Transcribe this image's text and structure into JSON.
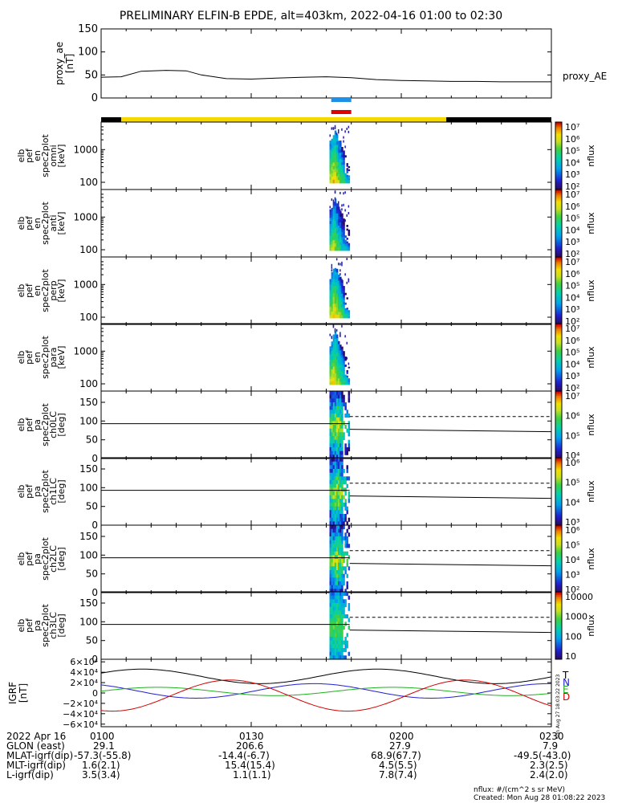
{
  "title": "PRELIMINARY ELFIN-B EPDE, alt=403km, 2022-04-16 01:00 to 02:30",
  "colors": {
    "sci_zone_blue": "#1e90e6",
    "sci_zone_red": "#e00000",
    "bar_black": "#000000",
    "bar_yellow": "#f5d800",
    "bx": "#000000",
    "by": "#2020d0",
    "bz": "#20b020",
    "bt": "#d00000"
  },
  "chart_data": [
    {
      "type": "line",
      "id": "proxy_ae",
      "ylabel_lines": [
        "proxy_ae",
        "[nT]"
      ],
      "ylim": [
        0,
        150
      ],
      "yticks": [
        "150",
        "100",
        "50",
        "0"
      ],
      "yticks_values": [
        150,
        100,
        50,
        0
      ],
      "series": [
        {
          "name": "proxy_AE",
          "x": [
            "01:00",
            "01:04",
            "01:08",
            "01:13",
            "01:17",
            "01:20",
            "01:25",
            "01:30",
            "01:35",
            "01:40",
            "01:45",
            "01:50",
            "01:55",
            "02:00",
            "02:05",
            "02:10",
            "02:15",
            "02:20",
            "02:25",
            "02:30"
          ],
          "values": [
            45,
            46,
            58,
            60,
            59,
            50,
            42,
            41,
            43,
            45,
            46,
            44,
            40,
            38,
            37,
            36,
            36,
            35,
            35,
            35
          ]
        }
      ]
    },
    {
      "type": "heatmap",
      "id": "omni",
      "ylabel_lines": [
        "elb",
        "pef",
        "en",
        "spec2plot",
        "omni",
        "[keV]"
      ],
      "ylog": true,
      "ylim": [
        60,
        7000
      ],
      "yticks": [
        "1000",
        "100"
      ],
      "yticks_values": [
        1000,
        100
      ],
      "colorbar": {
        "label": "nflux",
        "ticks": [
          "10⁷",
          "10⁶",
          "10⁵",
          "10⁴",
          "10³",
          "10²"
        ]
      }
    },
    {
      "type": "heatmap",
      "id": "anti",
      "ylabel_lines": [
        "elb",
        "pef",
        "en",
        "spec2plot",
        "anti",
        "[keV]"
      ],
      "ylog": true,
      "ylim": [
        60,
        7000
      ],
      "yticks": [
        "1000",
        "100"
      ],
      "yticks_values": [
        1000,
        100
      ],
      "colorbar": {
        "label": "nflux",
        "ticks": [
          "10⁷",
          "10⁶",
          "10⁵",
          "10⁴",
          "10³",
          "10²"
        ]
      }
    },
    {
      "type": "heatmap",
      "id": "perp",
      "ylabel_lines": [
        "elb",
        "pef",
        "en",
        "spec2plot",
        "perp",
        "[keV]"
      ],
      "ylog": true,
      "ylim": [
        60,
        7000
      ],
      "yticks": [
        "1000",
        "100"
      ],
      "yticks_values": [
        1000,
        100
      ],
      "colorbar": {
        "label": "nflux",
        "ticks": [
          "10⁷",
          "10⁶",
          "10⁵",
          "10⁴",
          "10³",
          "10²"
        ]
      }
    },
    {
      "type": "heatmap",
      "id": "para",
      "ylabel_lines": [
        "elb",
        "pef",
        "en",
        "spec2plot",
        "para",
        "[keV]"
      ],
      "ylog": true,
      "ylim": [
        60,
        7000
      ],
      "yticks": [
        "1000",
        "100"
      ],
      "yticks_values": [
        1000,
        100
      ],
      "colorbar": {
        "label": "nflux",
        "ticks": [
          "10⁷",
          "10⁶",
          "10⁵",
          "10⁴",
          "10³",
          "10²"
        ]
      }
    },
    {
      "type": "heatmap",
      "id": "ch0LC",
      "ylabel_lines": [
        "elb",
        "pef",
        "pa",
        "spec2plot",
        "ch0LC",
        "[deg]"
      ],
      "ylim": [
        0,
        180
      ],
      "yticks": [
        "150",
        "100",
        "50",
        "0"
      ],
      "yticks_values": [
        150,
        100,
        50,
        0
      ],
      "colorbar": {
        "label": "nflux",
        "ticks": [
          "10⁷",
          "10⁶",
          "10⁵",
          "10⁴"
        ]
      }
    },
    {
      "type": "heatmap",
      "id": "ch1LC",
      "ylabel_lines": [
        "elb",
        "pef",
        "pa",
        "spec2plot",
        "ch1LC",
        "[deg]"
      ],
      "ylim": [
        0,
        180
      ],
      "yticks": [
        "150",
        "100",
        "50",
        "0"
      ],
      "yticks_values": [
        150,
        100,
        50,
        0
      ],
      "colorbar": {
        "label": "nflux",
        "ticks": [
          "10⁶",
          "10⁵",
          "10⁴",
          "10³"
        ]
      }
    },
    {
      "type": "heatmap",
      "id": "ch2LC",
      "ylabel_lines": [
        "elb",
        "pef",
        "pa",
        "spec2plot",
        "ch2LC",
        "[deg]"
      ],
      "ylim": [
        0,
        180
      ],
      "yticks": [
        "150",
        "100",
        "50",
        "0"
      ],
      "yticks_values": [
        150,
        100,
        50,
        0
      ],
      "colorbar": {
        "label": "nflux",
        "ticks": [
          "10⁶",
          "10⁵",
          "10⁴",
          "10³",
          "10²"
        ]
      }
    },
    {
      "type": "heatmap",
      "id": "ch3LC",
      "ylabel_lines": [
        "elb",
        "pef",
        "pa",
        "spec2plot",
        "ch3LC",
        "[deg]"
      ],
      "ylim": [
        0,
        180
      ],
      "yticks": [
        "150",
        "100",
        "50",
        "0"
      ],
      "yticks_values": [
        150,
        100,
        50,
        0
      ],
      "colorbar": {
        "label": "nflux",
        "ticks": [
          "10000",
          "1000",
          "100",
          "10"
        ]
      }
    },
    {
      "type": "line",
      "id": "igrf",
      "ylabel_lines": [
        "IGRF",
        "[nT]"
      ],
      "ylim": [
        -65000,
        65000
      ],
      "yticks": [
        "6×10⁴",
        "4×10⁴",
        "2×10⁴",
        "0",
        "−2×10⁴",
        "−4×10⁴",
        "−6×10⁴"
      ],
      "yticks_values": [
        60000,
        40000,
        20000,
        0,
        -20000,
        -40000,
        -60000
      ],
      "legend": [
        "T",
        "N",
        "E",
        "D"
      ],
      "stamp": "Sun Aug 27 18:03:22 2023"
    }
  ],
  "time_axis": {
    "row_labels": [
      "2022 Apr 16",
      "GLON (east)",
      "MLAT-igrf(dip)",
      "MLT-igrf(dip)",
      "L-igrf(dip)"
    ],
    "columns": [
      {
        "time": "0100",
        "glon": "29.1",
        "mlat": "-57.3(-55.8)",
        "mlt": "1.6(2.1)",
        "l": "3.5(3.4)"
      },
      {
        "time": "0130",
        "glon": "206.6",
        "mlat": "-14.4(-6.7)",
        "mlt": "15.4(15.4)",
        "l": "1.1(1.1)"
      },
      {
        "time": "0200",
        "glon": "27.9",
        "mlat": "68.9(67.7)",
        "mlt": "4.5(5.5)",
        "l": "7.8(7.4)"
      },
      {
        "time": "0230",
        "glon": "7.9",
        "mlat": "-49.5(-43.0)",
        "mlt": "2.3(2.5)",
        "l": "2.4(2.0)"
      }
    ]
  },
  "footnotes": {
    "units": "nflux: #/(cm^2 s sr MeV)",
    "created": "Created: Mon Aug 28 01:08:22 2023"
  }
}
